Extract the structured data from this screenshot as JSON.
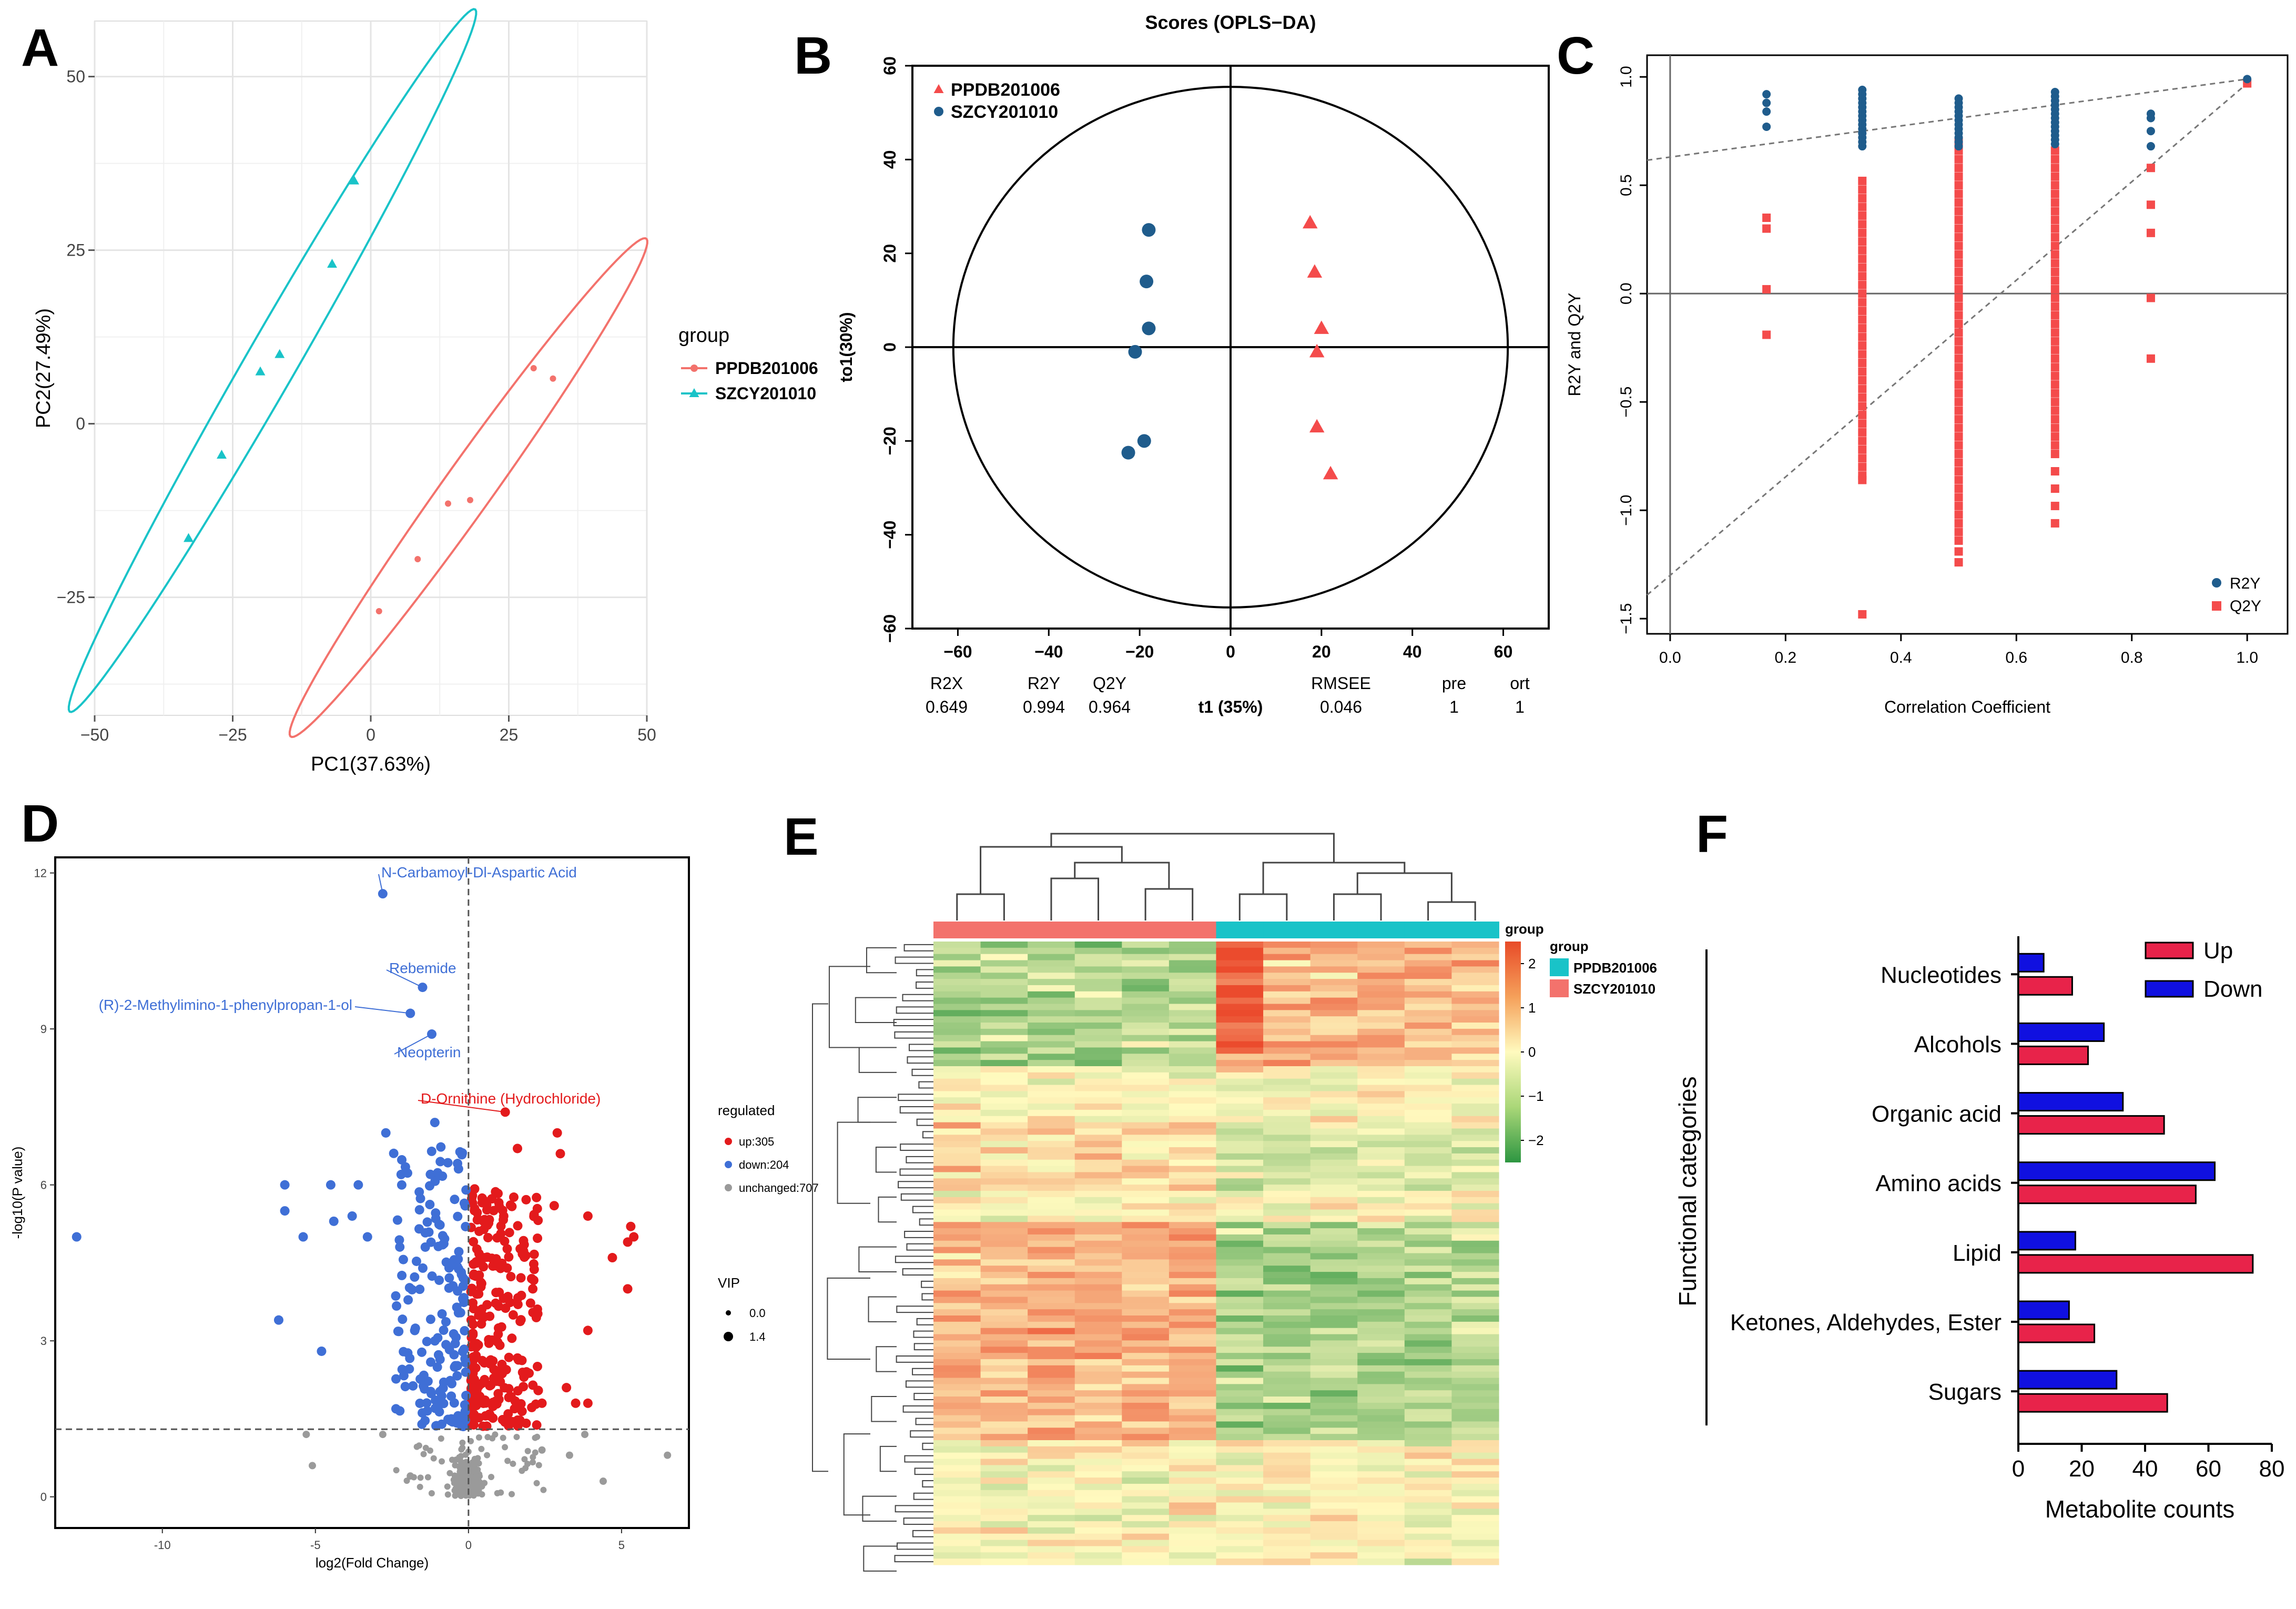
{
  "colors": {
    "teal": "#19C3C8",
    "salmon": "#F3726C",
    "red": "#E31A1C",
    "blue": "#3F6FD6",
    "gray": "#9A9A9A",
    "navy": "#1F5C8C",
    "pinkred": "#F44B4B",
    "barRed": "#E8234A",
    "barBlue": "#1010E0"
  },
  "chart_data": [
    {
      "panel": "A",
      "type": "scatter",
      "panel_label": "A",
      "xlabel": "PC1(37.63%)",
      "ylabel": "PC2(27.49%)",
      "xlim": [
        -50,
        50
      ],
      "ylim": [
        -42,
        58
      ],
      "xticks": [
        -50,
        -25,
        0,
        25,
        50
      ],
      "yticks": [
        -25,
        0,
        25,
        50
      ],
      "xtick_labels": [
        "−50",
        "−25",
        "0",
        "25",
        "50"
      ],
      "ytick_labels": [
        "−25",
        "0",
        "25",
        "50"
      ],
      "legend_title": "group",
      "series": [
        {
          "name": "PPDB201006",
          "points": [
            [
              29.5,
              8
            ],
            [
              33,
              6.5
            ],
            [
              14,
              -11.5
            ],
            [
              18,
              -11
            ],
            [
              8.5,
              -19.5
            ],
            [
              1.5,
              -27
            ]
          ],
          "ellipse": {
            "cx": 17.7,
            "cy": -9.2,
            "a": 48.2,
            "b": 4.1,
            "angle_deg": 48
          }
        },
        {
          "name": "SZCY201010",
          "points": [
            [
              -3,
              35
            ],
            [
              -7,
              23
            ],
            [
              -16.5,
              10
            ],
            [
              -20,
              7.5
            ],
            [
              -27,
              -4.5
            ],
            [
              -33,
              -16.5
            ]
          ],
          "ellipse": {
            "cx": -17.8,
            "cy": 9.1,
            "a": 62.5,
            "b": 4.3,
            "angle_deg": 54
          }
        }
      ]
    },
    {
      "panel": "B",
      "type": "scatter",
      "panel_label": "B",
      "title": "Scores (OPLS−DA)",
      "xlabel": "t1 (35%)",
      "ylabel": "to1(30%)",
      "xlim": [
        -70,
        70
      ],
      "ylim": [
        -60,
        60
      ],
      "xticks": [
        -60,
        -40,
        -20,
        0,
        20,
        40,
        60
      ],
      "yticks": [
        -60,
        -40,
        -20,
        0,
        20,
        40,
        60
      ],
      "xtick_labels": [
        "−60",
        "−40",
        "−20",
        "0",
        "20",
        "40",
        "60"
      ],
      "ytick_labels": [
        "−60",
        "−40",
        "−20",
        "0",
        "20",
        "40",
        "60"
      ],
      "ellipse": {
        "rx": 61,
        "ry": 55.5
      },
      "series": [
        {
          "name": "PPDB201006",
          "marker": "triangle",
          "points": [
            [
              17.5,
              26.5
            ],
            [
              18.5,
              16
            ],
            [
              20,
              4
            ],
            [
              19,
              -1
            ],
            [
              19,
              -17
            ],
            [
              22,
              -27
            ]
          ]
        },
        {
          "name": "SZCY201010",
          "marker": "circle",
          "points": [
            [
              -18,
              25
            ],
            [
              -18.5,
              14
            ],
            [
              -18,
              4
            ],
            [
              -21,
              -1
            ],
            [
              -19,
              -20
            ],
            [
              -22.5,
              -22.5
            ]
          ]
        }
      ],
      "stats": {
        "headers": [
          "R2X",
          "R2Y",
          "Q2Y",
          "RMSEE",
          "pre",
          "ort"
        ],
        "values": [
          "0.649",
          "0.994",
          "0.964",
          "0.046",
          "1",
          "1"
        ]
      }
    },
    {
      "panel": "C",
      "type": "scatter",
      "panel_label": "C",
      "xlabel": "Correlation Coefficient",
      "ylabel": "R2Y and Q2Y",
      "xlim": [
        -0.04,
        1.07
      ],
      "ylim": [
        -1.57,
        1.1
      ],
      "xticks": [
        0,
        0.2,
        0.4,
        0.6,
        0.8,
        1.0
      ],
      "yticks": [
        -1.5,
        -1,
        -0.5,
        0,
        0.5,
        1
      ],
      "xtick_labels": [
        "0.0",
        "0.2",
        "0.4",
        "0.6",
        "0.8",
        "1.0"
      ],
      "ytick_labels": [
        "−1.5",
        "−1.0",
        "−0.5",
        "0.0",
        "0.5",
        "1.0"
      ],
      "lines": {
        "R2Y": {
          "intercept": 0.63,
          "slope": 0.36
        },
        "Q2Y": {
          "intercept": -1.3,
          "slope": 2.27
        }
      },
      "series": [
        {
          "name": "R2Y",
          "marker": "circle",
          "groups": [
            {
              "x": 0.167,
              "y": [
                0.77,
                0.84,
                0.88,
                0.92
              ]
            },
            {
              "x": 0.333,
              "y": [
                0.68,
                0.7,
                0.72,
                0.74,
                0.76,
                0.78,
                0.8,
                0.82,
                0.84,
                0.86,
                0.88,
                0.9,
                0.92,
                0.94
              ]
            },
            {
              "x": 0.5,
              "y": [
                0.68,
                0.7,
                0.72,
                0.74,
                0.76,
                0.78,
                0.8,
                0.82,
                0.84,
                0.86,
                0.88,
                0.9
              ]
            },
            {
              "x": 0.667,
              "y": [
                0.69,
                0.71,
                0.73,
                0.75,
                0.77,
                0.79,
                0.81,
                0.83,
                0.85,
                0.87,
                0.89,
                0.91,
                0.93
              ]
            },
            {
              "x": 0.833,
              "y": [
                0.68,
                0.75,
                0.81,
                0.83
              ]
            },
            {
              "x": 1.0,
              "y": [
                0.99
              ]
            }
          ]
        },
        {
          "name": "Q2Y",
          "marker": "square",
          "groups": [
            {
              "x": 0.167,
              "y": [
                0.35,
                0.3,
                0.02,
                -0.19
              ]
            },
            {
              "x": 0.333,
              "y": [
                0.52,
                0.48,
                0.44,
                0.4,
                0.36,
                0.32,
                0.28,
                0.24,
                0.2,
                0.16,
                0.12,
                0.08,
                0.04,
                0.0,
                -0.04,
                -0.08,
                -0.12,
                -0.16,
                -0.2,
                -0.24,
                -0.28,
                -0.32,
                -0.36,
                -0.4,
                -0.44,
                -0.48,
                -0.52,
                -0.56,
                -0.6,
                -0.64,
                -0.68,
                -0.72,
                -0.76,
                -0.8,
                -0.84,
                -0.86,
                -1.48
              ]
            },
            {
              "x": 0.5,
              "y": [
                0.7,
                0.66,
                0.62,
                0.58,
                0.54,
                0.5,
                0.46,
                0.42,
                0.38,
                0.34,
                0.3,
                0.26,
                0.22,
                0.18,
                0.14,
                0.1,
                0.06,
                0.02,
                -0.02,
                -0.06,
                -0.1,
                -0.14,
                -0.18,
                -0.22,
                -0.26,
                -0.3,
                -0.34,
                -0.38,
                -0.42,
                -0.46,
                -0.5,
                -0.54,
                -0.58,
                -0.62,
                -0.66,
                -0.7,
                -0.74,
                -0.78,
                -0.82,
                -0.86,
                -0.9,
                -0.94,
                -0.98,
                -1.02,
                -1.06,
                -1.1,
                -1.14,
                -1.19,
                -1.24
              ]
            },
            {
              "x": 0.667,
              "y": [
                0.66,
                0.62,
                0.58,
                0.54,
                0.5,
                0.46,
                0.42,
                0.38,
                0.34,
                0.3,
                0.26,
                0.22,
                0.18,
                0.14,
                0.1,
                0.06,
                0.02,
                -0.02,
                -0.06,
                -0.1,
                -0.14,
                -0.18,
                -0.22,
                -0.26,
                -0.3,
                -0.34,
                -0.38,
                -0.42,
                -0.46,
                -0.5,
                -0.54,
                -0.58,
                -0.62,
                -0.66,
                -0.7,
                -0.74,
                -0.82,
                -0.9,
                -0.98,
                -1.06
              ]
            },
            {
              "x": 0.833,
              "y": [
                0.58,
                0.41,
                0.28,
                -0.02,
                -0.3
              ]
            },
            {
              "x": 1.0,
              "y": [
                0.97
              ]
            }
          ]
        }
      ]
    },
    {
      "panel": "D",
      "type": "scatter",
      "panel_label": "D",
      "xlabel": "log2(Fold Change)",
      "ylabel": "-log10(P value)",
      "xlim": [
        -13.5,
        7.2
      ],
      "ylim": [
        -0.6,
        12.3
      ],
      "xticks": [
        -10,
        -5,
        0,
        5
      ],
      "yticks": [
        0,
        3,
        6,
        9,
        12
      ],
      "xtick_labels": [
        "-10",
        "-5",
        "0",
        "5"
      ],
      "ytick_labels": [
        "0",
        "3",
        "6",
        "9",
        "12"
      ],
      "thresholds": {
        "x": 0,
        "y": 1.3
      },
      "legend_title": "regulated",
      "legend_items": [
        "up:305",
        "down:204",
        "unchanged:707"
      ],
      "vip_title": "VIP",
      "vip_items": [
        "0.0",
        "1.4"
      ],
      "annotations": [
        {
          "text": "N-Carbamoyl-Dl-Aspartic Acid",
          "x": -2.8,
          "y": 11.6,
          "group": "down"
        },
        {
          "text": "Rebemide",
          "x": -1.5,
          "y": 9.8,
          "group": "down"
        },
        {
          "text": "(R)-2-Methylimino-1-phenylpropan-1-ol",
          "x": -1.9,
          "y": 9.3,
          "group": "down"
        },
        {
          "text": "Neopterin",
          "x": -1.2,
          "y": 8.9,
          "group": "down"
        },
        {
          "text": "D-Ornithine (Hydrochloride)",
          "x": 1.2,
          "y": 7.4,
          "group": "up"
        }
      ],
      "outliers": {
        "down": [
          [
            -12.8,
            5.0
          ],
          [
            -6.0,
            6.0
          ],
          [
            -6.0,
            5.5
          ],
          [
            -5.4,
            5.0
          ],
          [
            -6.2,
            3.4
          ],
          [
            -4.5,
            6.0
          ],
          [
            -4.4,
            5.3
          ],
          [
            -3.6,
            6.0
          ],
          [
            -3.3,
            5.0
          ],
          [
            -4.8,
            2.8
          ],
          [
            -3.8,
            5.4
          ],
          [
            -2.7,
            7.0
          ],
          [
            -1.1,
            7.2
          ],
          [
            -2.2,
            6.2
          ]
        ],
        "up": [
          [
            5.3,
            5.2
          ],
          [
            5.4,
            5.0
          ],
          [
            5.2,
            4.9
          ],
          [
            5.2,
            4.0
          ],
          [
            4.7,
            4.6
          ],
          [
            3.9,
            5.4
          ],
          [
            2.8,
            5.6
          ],
          [
            3.0,
            6.6
          ],
          [
            2.1,
            4.0
          ],
          [
            1.6,
            6.7
          ],
          [
            2.9,
            7.0
          ],
          [
            3.9,
            3.2
          ],
          [
            3.2,
            2.1
          ],
          [
            3.9,
            1.8
          ],
          [
            2.4,
            1.8
          ],
          [
            3.5,
            1.8
          ]
        ],
        "unchanged": [
          [
            -2.8,
            1.2
          ],
          [
            -5.1,
            0.6
          ],
          [
            -1.9,
            0.4
          ],
          [
            -5.3,
            1.2
          ],
          [
            3.8,
            1.2
          ],
          [
            4.4,
            0.3
          ],
          [
            6.5,
            0.8
          ],
          [
            3.3,
            0.8
          ],
          [
            2.4,
            0.9
          ]
        ]
      }
    },
    {
      "panel": "E",
      "type": "heatmap",
      "panel_label": "E",
      "legend_title": "group",
      "group_title": "group",
      "groups": [
        "PPDB201006",
        "SZCY201010"
      ],
      "color_scale": {
        "min": -2.5,
        "max": 2.5,
        "ticks": [
          "2",
          "1",
          "0",
          "−1",
          "−2"
        ],
        "tick_values": [
          2,
          1,
          0,
          -1,
          -2
        ]
      },
      "column_groups": [
        "SZCY201010",
        "SZCY201010",
        "SZCY201010",
        "SZCY201010",
        "SZCY201010",
        "SZCY201010",
        "PPDB201006",
        "PPDB201006",
        "PPDB201006",
        "PPDB201006",
        "PPDB201006",
        "PPDB201006"
      ],
      "rows": 100
    },
    {
      "panel": "F",
      "type": "bar",
      "panel_label": "F",
      "orientation": "horizontal",
      "xlabel": "Metabolite counts",
      "ylabel": "Functional categories",
      "categories": [
        "Nucleotides",
        "Alcohols",
        "Organic acid",
        "Amino acids",
        "Lipid",
        "Ketones, Aldehydes, Ester",
        "Sugars"
      ],
      "series": [
        {
          "name": "Up",
          "values": [
            17,
            22,
            46,
            56,
            74,
            24,
            47
          ]
        },
        {
          "name": "Down",
          "values": [
            8,
            27,
            33,
            62,
            18,
            16,
            31
          ]
        }
      ],
      "xlim": [
        0,
        80
      ],
      "xticks": [
        0,
        20,
        40,
        60,
        80
      ],
      "xtick_labels": [
        "0",
        "20",
        "40",
        "60",
        "80"
      ]
    }
  ]
}
